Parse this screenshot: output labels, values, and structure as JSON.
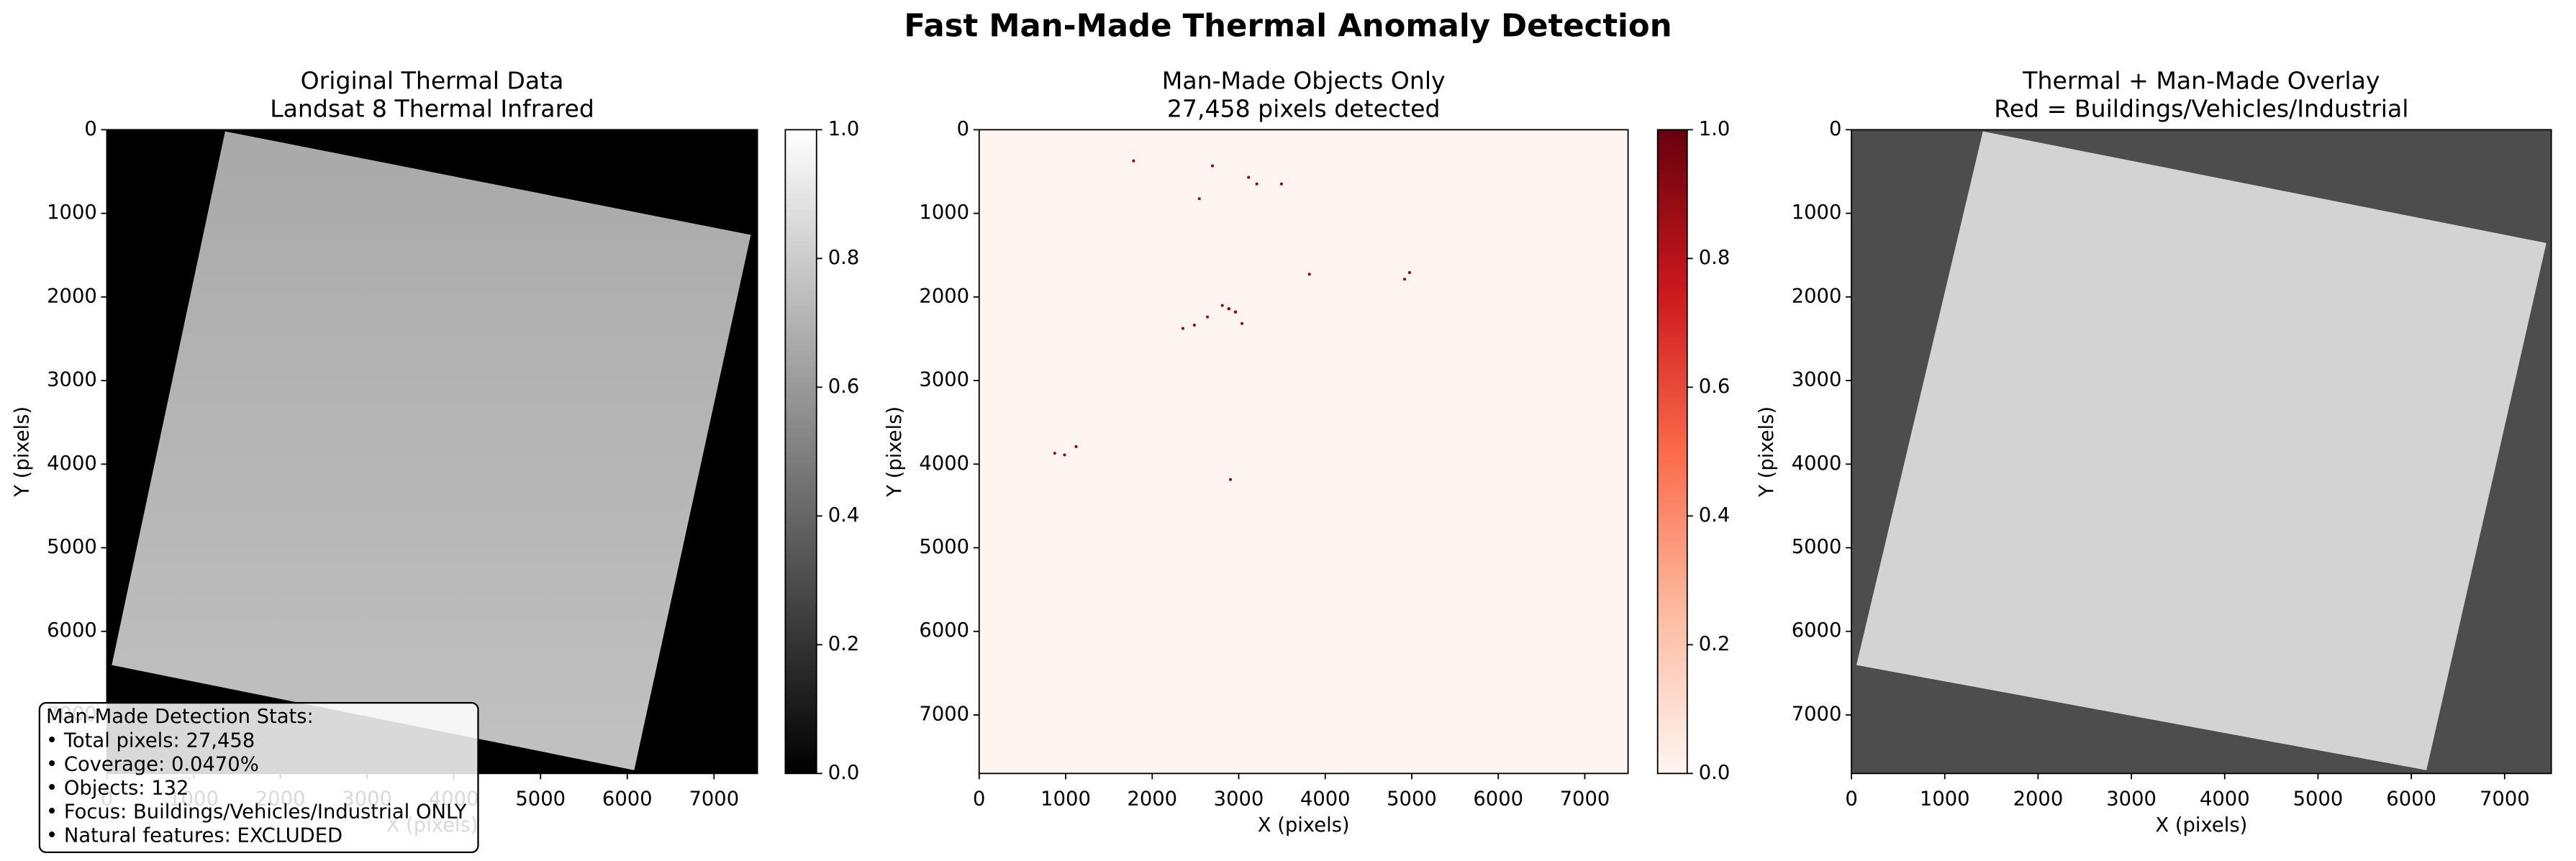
{
  "title": "Fast Man-Made Thermal Anomaly Detection",
  "chart_data": [
    {
      "type": "image",
      "title": "Original Thermal Data",
      "subtitle": "Landsat 8 Thermal Infrared",
      "xlabel": "X (pixels)",
      "ylabel": "Y (pixels)",
      "colormap": "gray",
      "xlim": [
        0,
        7500
      ],
      "ylim": [
        7700,
        0
      ],
      "xticks": [
        0,
        1000,
        2000,
        3000,
        4000,
        5000,
        6000,
        7000
      ],
      "yticks": [
        0,
        1000,
        2000,
        3000,
        4000,
        5000,
        6000,
        7000
      ],
      "clim": [
        0,
        1
      ],
      "cticks": [
        {
          "value": 0,
          "label": "0.0"
        },
        {
          "value": 0.2,
          "label": "0.2"
        },
        {
          "value": 0.4,
          "label": "0.4"
        },
        {
          "value": 0.6,
          "label": "0.6"
        },
        {
          "value": 0.8,
          "label": "0.8"
        },
        {
          "value": 1,
          "label": "1.0"
        }
      ]
    },
    {
      "type": "image",
      "title": "Man-Made Objects Only",
      "subtitle": "27,458 pixels detected",
      "xlabel": "X (pixels)",
      "ylabel": "Y (pixels)",
      "colormap": "Reds",
      "xlim": [
        0,
        7500
      ],
      "ylim": [
        7700,
        0
      ],
      "xticks": [
        0,
        1000,
        2000,
        3000,
        4000,
        5000,
        6000,
        7000
      ],
      "yticks": [
        0,
        1000,
        2000,
        3000,
        4000,
        5000,
        6000,
        7000
      ],
      "clim": [
        0,
        1
      ],
      "cticks": [
        {
          "value": 0,
          "label": "0.0"
        },
        {
          "value": 0.2,
          "label": "0.2"
        },
        {
          "value": 0.4,
          "label": "0.4"
        },
        {
          "value": 0.6,
          "label": "0.6"
        },
        {
          "value": 0.8,
          "label": "0.8"
        },
        {
          "value": 1,
          "label": "1.0"
        }
      ]
    },
    {
      "type": "image",
      "title": "Thermal + Man-Made Overlay",
      "subtitle": "Red = Buildings/Vehicles/Industrial",
      "xlabel": "X (pixels)",
      "ylabel": "Y (pixels)",
      "colormap": "overlay",
      "xlim": [
        0,
        7500
      ],
      "ylim": [
        7700,
        0
      ],
      "xticks": [
        0,
        1000,
        2000,
        3000,
        4000,
        5000,
        6000,
        7000
      ],
      "yticks": [
        0,
        1000,
        2000,
        3000,
        4000,
        5000,
        6000,
        7000
      ]
    }
  ],
  "stats_box": {
    "lines": [
      "Man-Made Detection Stats:",
      "• Total pixels: 27,458",
      "• Coverage: 0.0470%",
      "• Objects: 132",
      "• Focus: Buildings/Vehicles/Industrial ONLY",
      "• Natural features: EXCLUDED"
    ]
  }
}
